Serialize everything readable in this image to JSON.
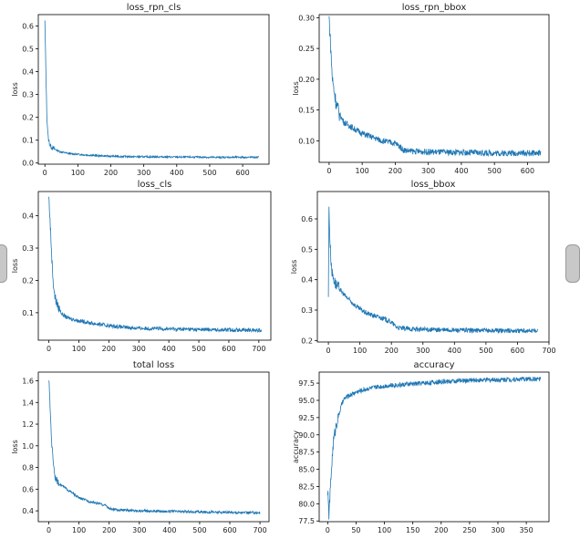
{
  "chart_data": [
    {
      "type": "line",
      "title": "loss_rpn_cls",
      "ylabel": "loss",
      "xlabel": "",
      "xlim": [
        -20,
        680
      ],
      "ylim": [
        -0.005,
        0.65
      ],
      "xticks": [
        0,
        100,
        200,
        300,
        400,
        500,
        600
      ],
      "yticks": [
        0.0,
        0.1,
        0.2,
        0.3,
        0.4,
        0.5,
        0.6
      ],
      "ytick_labels": [
        "0.0",
        "0.1",
        "0.2",
        "0.3",
        "0.4",
        "0.5",
        "0.6"
      ],
      "series": [
        {
          "name": "loss_rpn_cls",
          "color": "#1f77b4",
          "x": [
            0,
            3,
            6,
            10,
            15,
            20,
            30,
            45,
            60,
            80,
            100,
            130,
            160,
            200,
            250,
            300,
            350,
            400,
            450,
            500,
            550,
            600,
            650
          ],
          "values": [
            0.62,
            0.4,
            0.2,
            0.11,
            0.08,
            0.07,
            0.06,
            0.05,
            0.045,
            0.04,
            0.038,
            0.035,
            0.032,
            0.03,
            0.028,
            0.027,
            0.027,
            0.026,
            0.026,
            0.025,
            0.025,
            0.025,
            0.025
          ],
          "noise": 0.004
        }
      ]
    },
    {
      "type": "line",
      "title": "loss_rpn_bbox",
      "ylabel": "loss",
      "xlabel": "",
      "xlim": [
        -30,
        665
      ],
      "ylim": [
        0.065,
        0.305
      ],
      "xticks": [
        0,
        100,
        200,
        300,
        400,
        500,
        600
      ],
      "yticks": [
        0.1,
        0.15,
        0.2,
        0.25,
        0.3
      ],
      "ytick_labels": [
        "0.10",
        "0.15",
        "0.20",
        "0.25",
        "0.30"
      ],
      "series": [
        {
          "name": "loss_rpn_bbox",
          "color": "#1f77b4",
          "x": [
            0,
            5,
            10,
            20,
            30,
            45,
            60,
            80,
            100,
            130,
            160,
            200,
            215,
            225,
            250,
            300,
            400,
            500,
            640
          ],
          "values": [
            0.3,
            0.25,
            0.2,
            0.165,
            0.145,
            0.13,
            0.125,
            0.118,
            0.112,
            0.106,
            0.1,
            0.096,
            0.09,
            0.085,
            0.083,
            0.082,
            0.081,
            0.08,
            0.08
          ],
          "noise": 0.005
        }
      ]
    },
    {
      "type": "line",
      "title": "loss_cls",
      "ylabel": "loss",
      "xlabel": "",
      "xlim": [
        -35,
        740
      ],
      "ylim": [
        0.015,
        0.475
      ],
      "xticks": [
        0,
        100,
        200,
        300,
        400,
        500,
        600,
        700
      ],
      "yticks": [
        0.1,
        0.2,
        0.3,
        0.4
      ],
      "ytick_labels": [
        "0.1",
        "0.2",
        "0.3",
        "0.4"
      ],
      "series": [
        {
          "name": "loss_cls",
          "color": "#1f77b4",
          "x": [
            0,
            5,
            10,
            15,
            20,
            30,
            45,
            60,
            80,
            100,
            130,
            160,
            200,
            250,
            300,
            400,
            500,
            600,
            710
          ],
          "values": [
            0.46,
            0.37,
            0.27,
            0.19,
            0.15,
            0.12,
            0.095,
            0.085,
            0.08,
            0.075,
            0.07,
            0.065,
            0.06,
            0.055,
            0.052,
            0.05,
            0.048,
            0.047,
            0.046
          ],
          "noise": 0.006
        }
      ]
    },
    {
      "type": "line",
      "title": "loss_bbox",
      "ylabel": "loss",
      "xlabel": "",
      "xlim": [
        -35,
        700
      ],
      "ylim": [
        0.195,
        0.69
      ],
      "xticks": [
        0,
        100,
        200,
        300,
        400,
        500,
        600,
        700
      ],
      "yticks": [
        0.2,
        0.3,
        0.4,
        0.5,
        0.6
      ],
      "ytick_labels": [
        "0.2",
        "0.3",
        "0.4",
        "0.5",
        "0.6"
      ],
      "series": [
        {
          "name": "loss_bbox",
          "color": "#1f77b4",
          "x": [
            0,
            2,
            4,
            8,
            12,
            18,
            25,
            35,
            50,
            70,
            90,
            120,
            150,
            180,
            200,
            215,
            230,
            260,
            300,
            400,
            500,
            600,
            665
          ],
          "values": [
            0.35,
            0.66,
            0.55,
            0.47,
            0.42,
            0.4,
            0.38,
            0.37,
            0.35,
            0.33,
            0.31,
            0.29,
            0.28,
            0.27,
            0.26,
            0.245,
            0.24,
            0.238,
            0.236,
            0.234,
            0.233,
            0.232,
            0.232
          ],
          "noise": 0.008
        }
      ]
    },
    {
      "type": "line",
      "title": "total loss",
      "ylabel": "loss",
      "xlabel": "",
      "xlim": [
        -35,
        730
      ],
      "ylim": [
        0.3,
        1.68
      ],
      "xticks": [
        0,
        100,
        200,
        300,
        400,
        500,
        600,
        700
      ],
      "yticks": [
        0.4,
        0.6,
        0.8,
        1.0,
        1.2,
        1.4,
        1.6
      ],
      "ytick_labels": [
        "0.4",
        "0.6",
        "0.8",
        "1.0",
        "1.2",
        "1.4",
        "1.6"
      ],
      "series": [
        {
          "name": "total loss",
          "color": "#1f77b4",
          "x": [
            0,
            5,
            10,
            15,
            20,
            30,
            45,
            60,
            80,
            100,
            130,
            160,
            190,
            200,
            220,
            260,
            300,
            400,
            500,
            600,
            700
          ],
          "values": [
            1.62,
            1.3,
            1.0,
            0.85,
            0.72,
            0.66,
            0.63,
            0.6,
            0.56,
            0.52,
            0.49,
            0.47,
            0.45,
            0.42,
            0.41,
            0.405,
            0.4,
            0.395,
            0.39,
            0.385,
            0.383
          ],
          "noise": 0.012
        }
      ]
    },
    {
      "type": "line",
      "title": "accuracy",
      "ylabel": "accuracy",
      "xlabel": "",
      "xlim": [
        -15,
        390
      ],
      "ylim": [
        77.4,
        99.1
      ],
      "xticks": [
        0,
        50,
        100,
        150,
        200,
        250,
        300,
        350
      ],
      "yticks": [
        77.5,
        80.0,
        82.5,
        85.0,
        87.5,
        90.0,
        92.5,
        95.0,
        97.5
      ],
      "ytick_labels": [
        "77.5",
        "80.0",
        "82.5",
        "85.0",
        "87.5",
        "90.0",
        "92.5",
        "95.0",
        "97.5"
      ],
      "series": [
        {
          "name": "accuracy",
          "color": "#1f77b4",
          "x": [
            0,
            2,
            4,
            7,
            10,
            15,
            20,
            25,
            30,
            40,
            50,
            70,
            100,
            150,
            200,
            250,
            300,
            350,
            375
          ],
          "values": [
            82.0,
            78.3,
            81.0,
            85.5,
            89.0,
            91.5,
            93.0,
            94.5,
            95.3,
            95.8,
            96.2,
            96.7,
            97.1,
            97.4,
            97.7,
            97.9,
            98.0,
            98.1,
            98.1
          ],
          "noise": 0.35
        }
      ]
    }
  ]
}
